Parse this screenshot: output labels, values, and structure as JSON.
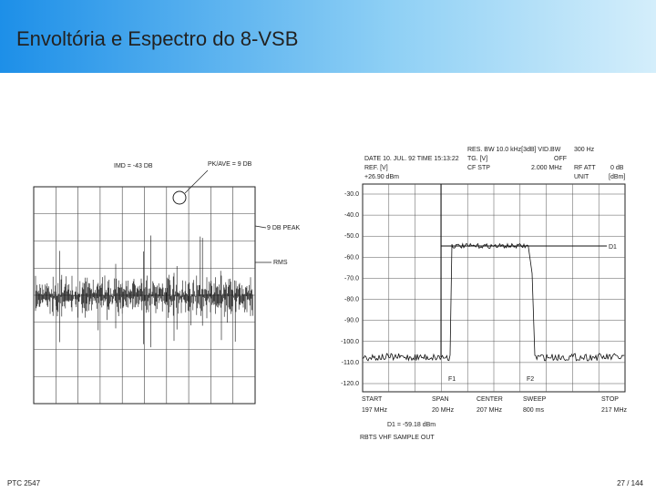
{
  "header": {
    "title": "Envoltória  e Espectro do 8-VSB"
  },
  "figure_left": {
    "imd": "IMD = -43 DB",
    "pk_ave": "PK/AVE = 9 DB",
    "peak": "9 DB PEAK",
    "rms": "RMS"
  },
  "figure_right": {
    "header_lines": [
      "RES. BW 10.0 kHz[3dB] VID.BW",
      "300 Hz",
      "DATE 10. JUL. 92 TIME 15:13:22",
      "TG. [V]",
      "OFF",
      "REF. [V]",
      "CF STP",
      "2.000 MHz",
      "RF ATT",
      "0 dB",
      "+26.90 dBm",
      "UNIT",
      "[dBm]"
    ],
    "y_labels": [
      "-30.0",
      "-40.0",
      "-50.0",
      "-60.0",
      "-70.0",
      "-80.0",
      "-90.0",
      "-100.0",
      "-110.0",
      "-120.0"
    ],
    "markers": [
      "F1",
      "F2",
      "D1"
    ],
    "footer_labels": [
      "START",
      "197 MHz",
      "SPAN",
      "20 MHz",
      "CENTER",
      "207 MHz",
      "SWEEP",
      "800 ms",
      "STOP",
      "217 MHz",
      "D1 = -59.18 dBm",
      "RBTS VHF SAMPLE OUT"
    ]
  },
  "footer": {
    "course": "PTC 2547",
    "page": "27 / 144"
  }
}
